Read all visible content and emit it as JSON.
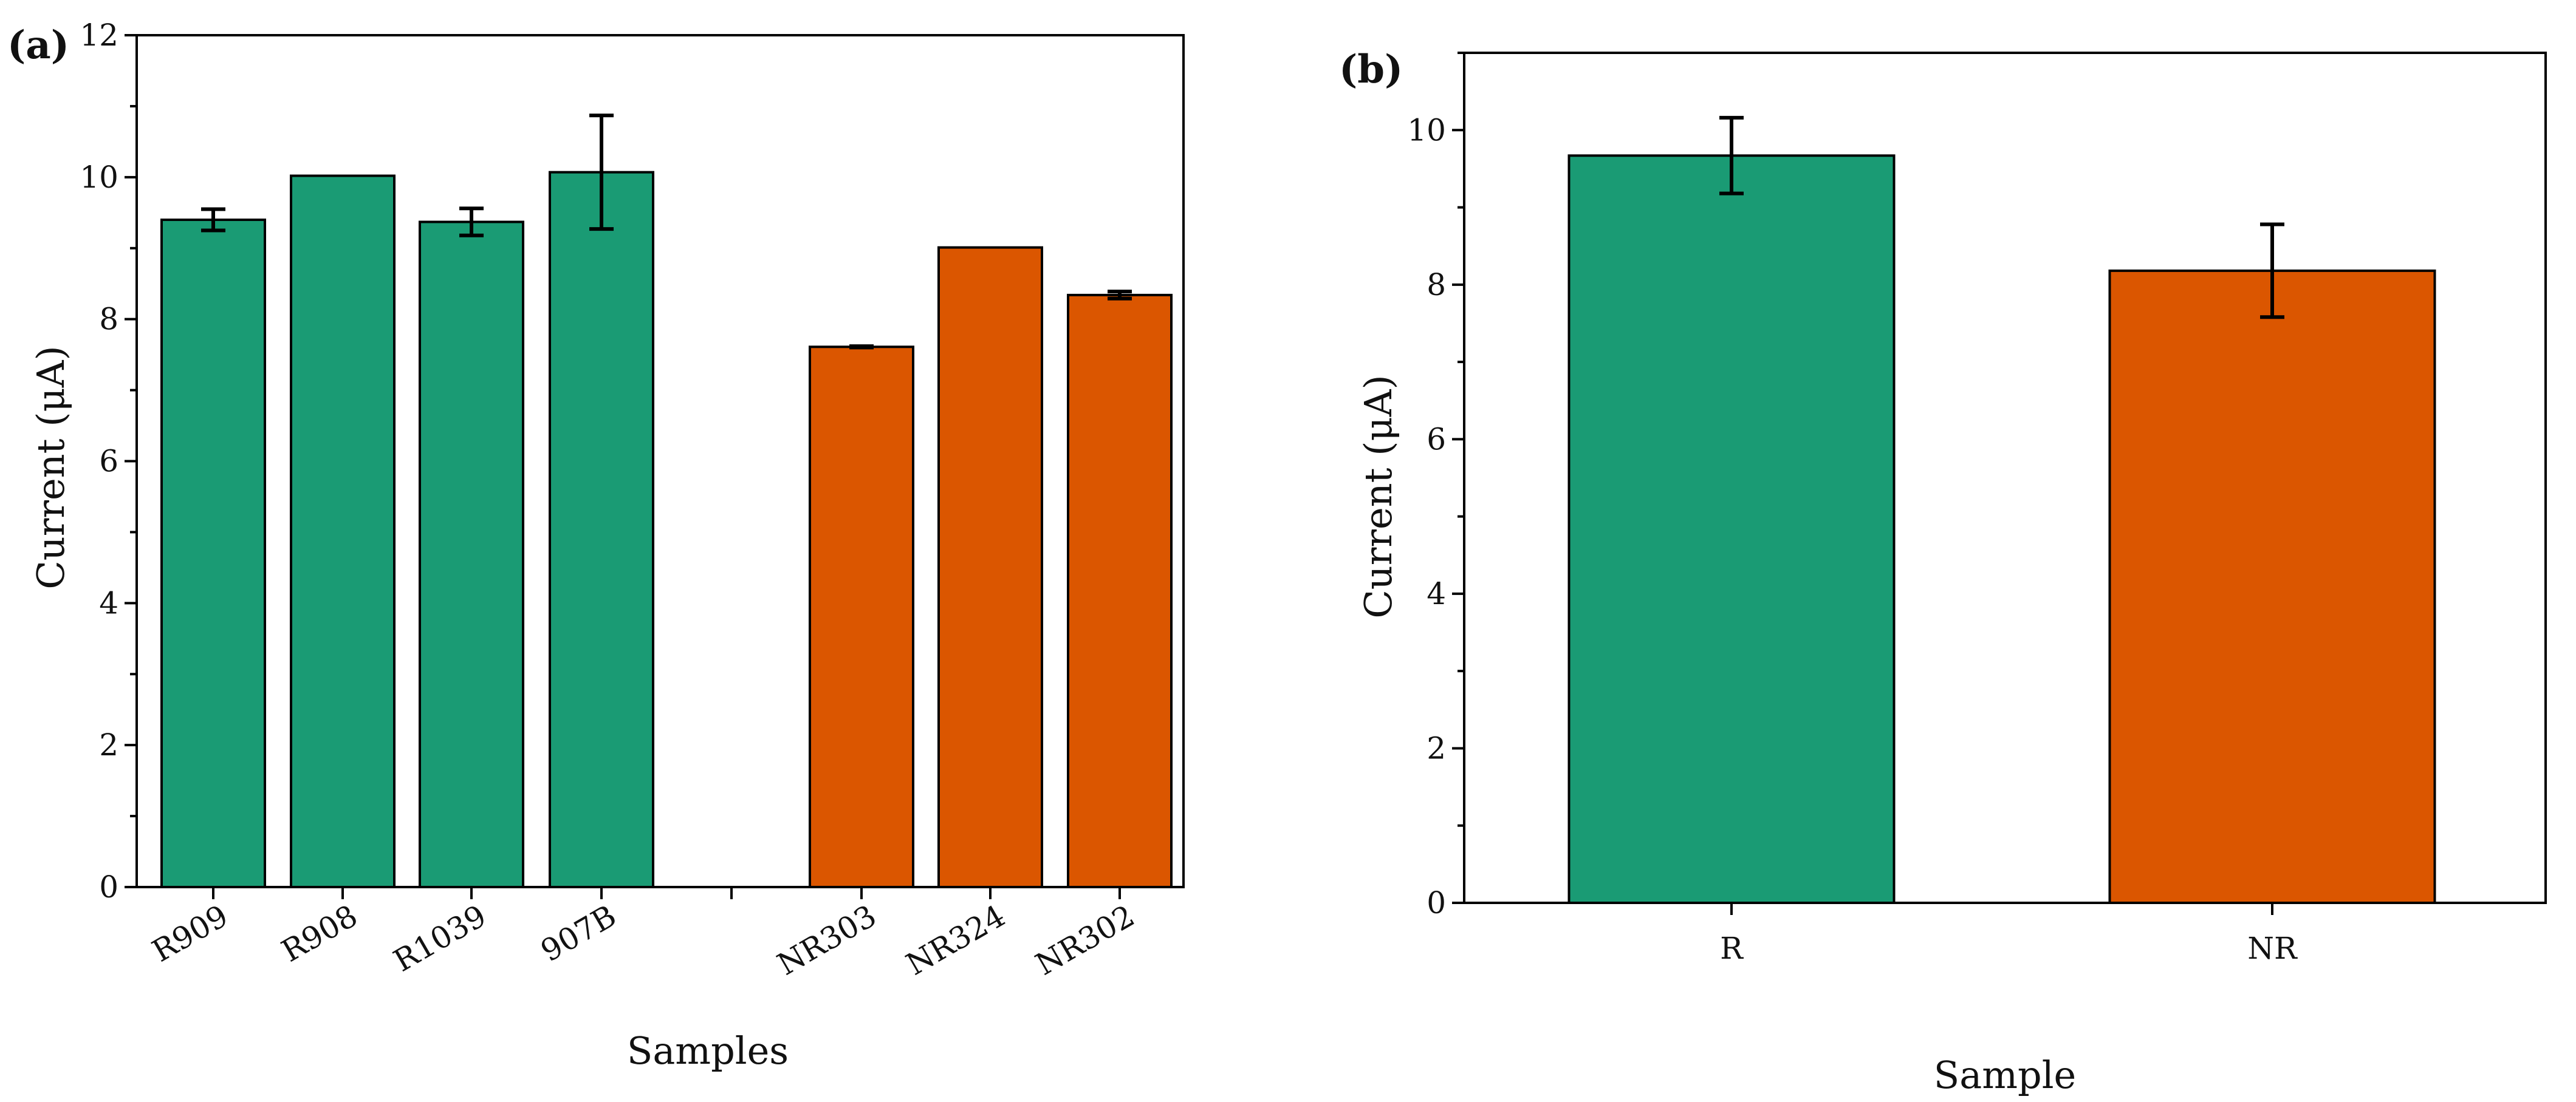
{
  "colors": {
    "R": "#1a9b74",
    "NR": "#db5600",
    "axis": "#000000"
  },
  "chart_data": [
    {
      "type": "bar",
      "panel_label": "(a)",
      "title": "",
      "xlabel": "Samples",
      "ylabel": "Current (μA)",
      "ylim": [
        0,
        12
      ],
      "yticks": [
        0,
        2,
        4,
        6,
        8,
        10,
        12
      ],
      "grid": false,
      "legend": "none",
      "categories": [
        "R909",
        "R908",
        "R1039",
        "907B",
        "NR303",
        "NR324",
        "NR302"
      ],
      "groups": [
        "R",
        "R",
        "R",
        "R",
        "NR",
        "NR",
        "NR"
      ],
      "values": [
        9.4,
        10.02,
        9.37,
        10.07,
        7.61,
        9.01,
        8.34
      ],
      "errors": [
        0.15,
        0.0,
        0.19,
        0.8,
        0.01,
        0.0,
        0.05
      ]
    },
    {
      "type": "bar",
      "panel_label": "(b)",
      "title": "",
      "xlabel": "Sample",
      "ylabel": "Current (μA)",
      "ylim": [
        0,
        11
      ],
      "yticks": [
        0,
        2,
        4,
        6,
        8,
        10
      ],
      "grid": false,
      "legend": "none",
      "categories": [
        "R",
        "NR"
      ],
      "groups": [
        "R",
        "NR"
      ],
      "values": [
        9.67,
        8.18
      ],
      "errors": [
        0.49,
        0.6
      ]
    }
  ]
}
